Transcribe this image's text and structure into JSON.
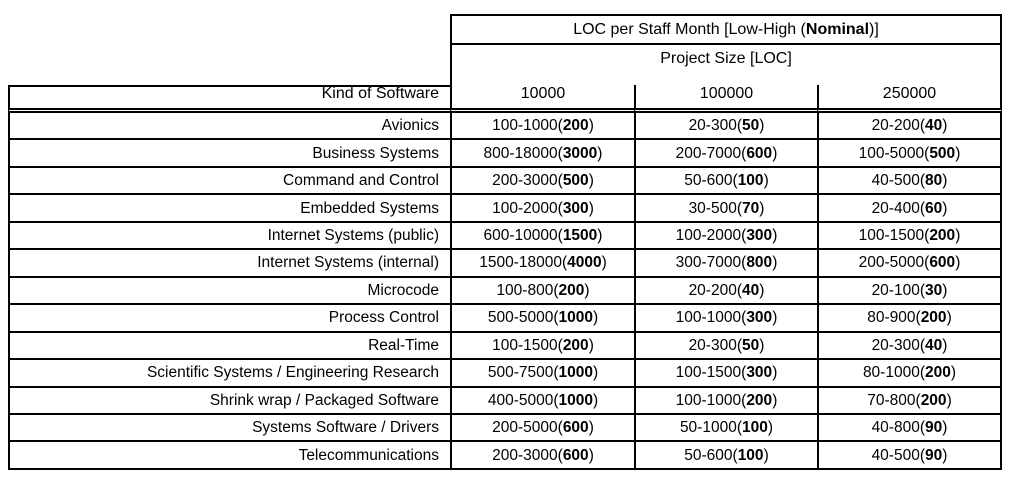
{
  "table": {
    "main_header": {
      "prefix": "LOC per Staff Month [Low-High (",
      "bold": "Nominal",
      "suffix": ")]"
    },
    "subheader": "Project Size [LOC]",
    "corner_label": "Kind of Software",
    "size_columns": [
      "10000",
      "100000",
      "250000"
    ],
    "rows": [
      {
        "label": "Avionics",
        "cells": [
          {
            "range": "100-1000",
            "nominal": "200"
          },
          {
            "range": "20-300",
            "nominal": "50"
          },
          {
            "range": "20-200",
            "nominal": "40"
          }
        ]
      },
      {
        "label": "Business Systems",
        "cells": [
          {
            "range": "800-18000",
            "nominal": "3000"
          },
          {
            "range": "200-7000",
            "nominal": "600"
          },
          {
            "range": "100-5000",
            "nominal": "500"
          }
        ]
      },
      {
        "label": "Command and Control",
        "cells": [
          {
            "range": "200-3000",
            "nominal": "500"
          },
          {
            "range": "50-600",
            "nominal": "100"
          },
          {
            "range": "40-500",
            "nominal": "80"
          }
        ]
      },
      {
        "label": "Embedded Systems",
        "cells": [
          {
            "range": "100-2000",
            "nominal": "300"
          },
          {
            "range": "30-500",
            "nominal": "70"
          },
          {
            "range": "20-400",
            "nominal": "60"
          }
        ]
      },
      {
        "label": "Internet Systems (public)",
        "cells": [
          {
            "range": "600-10000",
            "nominal": "1500"
          },
          {
            "range": "100-2000",
            "nominal": "300"
          },
          {
            "range": "100-1500",
            "nominal": "200"
          }
        ]
      },
      {
        "label": "Internet Systems (internal)",
        "cells": [
          {
            "range": "1500-18000",
            "nominal": "4000"
          },
          {
            "range": "300-7000",
            "nominal": "800"
          },
          {
            "range": "200-5000",
            "nominal": "600"
          }
        ]
      },
      {
        "label": "Microcode",
        "cells": [
          {
            "range": "100-800",
            "nominal": "200"
          },
          {
            "range": "20-200",
            "nominal": "40"
          },
          {
            "range": "20-100",
            "nominal": "30"
          }
        ]
      },
      {
        "label": "Process Control",
        "cells": [
          {
            "range": "500-5000",
            "nominal": "1000"
          },
          {
            "range": "100-1000",
            "nominal": "300"
          },
          {
            "range": "80-900",
            "nominal": "200"
          }
        ]
      },
      {
        "label": "Real-Time",
        "cells": [
          {
            "range": "100-1500",
            "nominal": "200"
          },
          {
            "range": "20-300",
            "nominal": "50"
          },
          {
            "range": "20-300",
            "nominal": "40"
          }
        ]
      },
      {
        "label": "Scientific Systems / Engineering Research",
        "cells": [
          {
            "range": "500-7500",
            "nominal": "1000"
          },
          {
            "range": "100-1500",
            "nominal": "300"
          },
          {
            "range": "80-1000",
            "nominal": "200"
          }
        ]
      },
      {
        "label": "Shrink wrap / Packaged Software",
        "cells": [
          {
            "range": "400-5000",
            "nominal": "1000"
          },
          {
            "range": "100-1000",
            "nominal": "200"
          },
          {
            "range": "70-800",
            "nominal": "200"
          }
        ]
      },
      {
        "label": "Systems Software / Drivers",
        "cells": [
          {
            "range": "200-5000",
            "nominal": "600"
          },
          {
            "range": "50-1000",
            "nominal": "100"
          },
          {
            "range": "40-800",
            "nominal": "90"
          }
        ]
      },
      {
        "label": "Telecommunications",
        "cells": [
          {
            "range": "200-3000",
            "nominal": "600"
          },
          {
            "range": "50-600",
            "nominal": "100"
          },
          {
            "range": "40-500",
            "nominal": "90"
          }
        ]
      }
    ]
  }
}
